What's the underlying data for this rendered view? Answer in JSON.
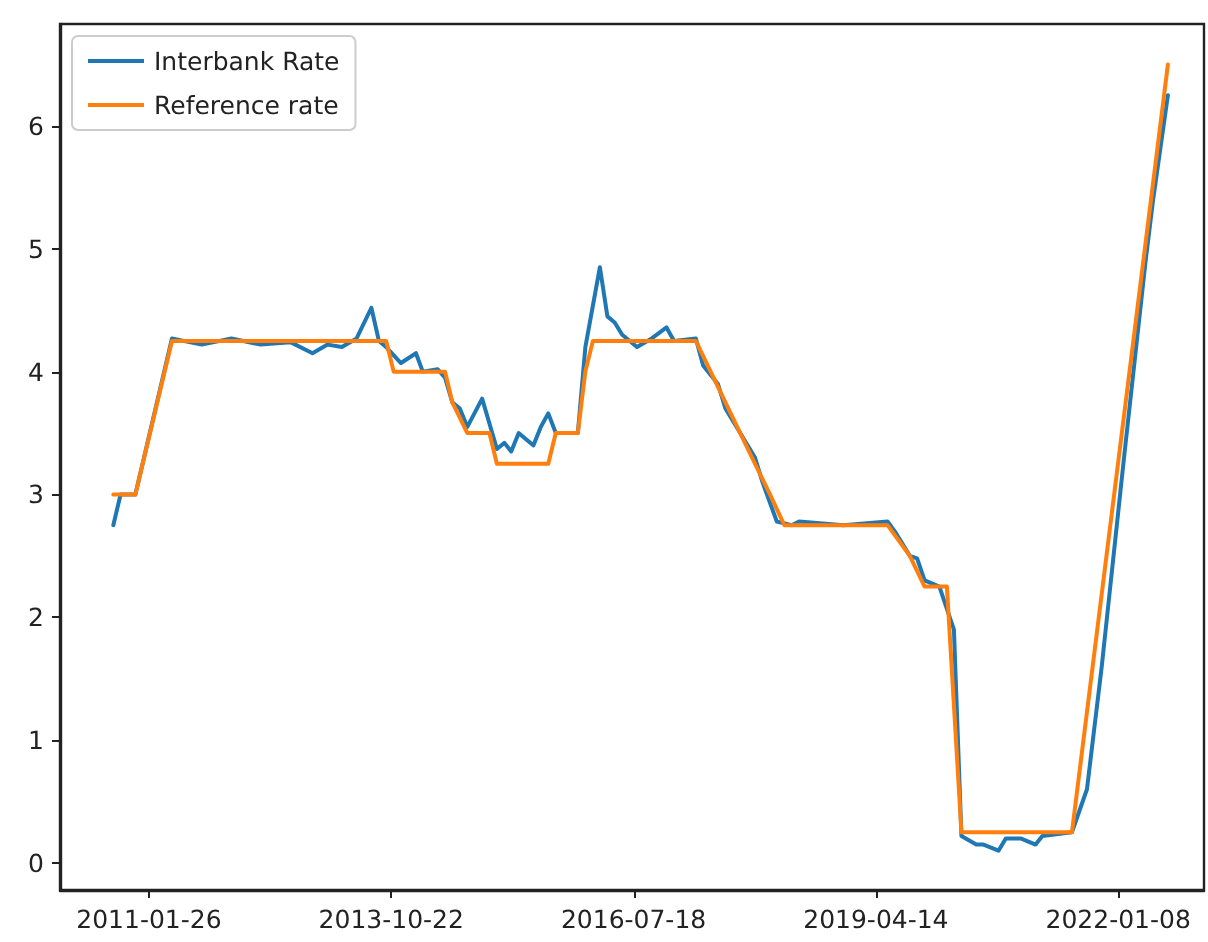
{
  "chart_data": {
    "type": "line",
    "xlim": [
      "2010-01-24",
      "2022-12-28"
    ],
    "xticks": [
      "2011-01-26",
      "2013-10-22",
      "2016-07-18",
      "2019-04-14",
      "2022-01-08"
    ],
    "ylim": [
      -0.22,
      6.83
    ],
    "yticks": [
      0,
      1,
      2,
      3,
      4,
      5,
      6
    ],
    "legend": "top left",
    "grid": false,
    "marker": "none",
    "line_style": "solid",
    "series": [
      {
        "name": "Interbank Rate",
        "color": "#1f77b4",
        "x": [
          "2010-09",
          "2010-10",
          "2010-12",
          "2011-05",
          "2011-09",
          "2012-01",
          "2012-05",
          "2012-09",
          "2012-12",
          "2013-02",
          "2013-04",
          "2013-06",
          "2013-08",
          "2013-09",
          "2013-10",
          "2013-12",
          "2014-02",
          "2014-03",
          "2014-05",
          "2014-06",
          "2014-07",
          "2014-08",
          "2014-09",
          "2014-11",
          "2015-01",
          "2015-02",
          "2015-03",
          "2015-04",
          "2015-05",
          "2015-06",
          "2015-07",
          "2015-08",
          "2015-09",
          "2015-12",
          "2016-01",
          "2016-03",
          "2016-04",
          "2016-05",
          "2016-06",
          "2016-08",
          "2016-10",
          "2016-12",
          "2017-01",
          "2017-04",
          "2017-05",
          "2017-07",
          "2017-08",
          "2017-10",
          "2017-12",
          "2018-01",
          "2018-03",
          "2018-05",
          "2018-06",
          "2018-12",
          "2019-06",
          "2019-07",
          "2019-09",
          "2019-10",
          "2019-11",
          "2020-01",
          "2020-03",
          "2020-04",
          "2020-06",
          "2020-07",
          "2020-09",
          "2020-10",
          "2020-12",
          "2021-02",
          "2021-03",
          "2021-07",
          "2021-09",
          "2021-11",
          "2022-02",
          "2022-05",
          "2022-06",
          "2022-08"
        ],
        "values": [
          2.75,
          3.0,
          3.0,
          4.27,
          4.22,
          4.27,
          4.22,
          4.24,
          4.15,
          4.22,
          4.2,
          4.27,
          4.52,
          4.25,
          4.2,
          4.07,
          4.15,
          4.0,
          4.02,
          3.95,
          3.75,
          3.7,
          3.55,
          3.78,
          3.37,
          3.42,
          3.35,
          3.5,
          3.45,
          3.4,
          3.55,
          3.66,
          3.5,
          3.5,
          4.2,
          4.85,
          4.45,
          4.4,
          4.3,
          4.2,
          4.27,
          4.36,
          4.25,
          4.27,
          4.05,
          3.9,
          3.7,
          3.5,
          3.3,
          3.1,
          2.78,
          2.75,
          2.78,
          2.75,
          2.78,
          2.7,
          2.5,
          2.48,
          2.3,
          2.25,
          1.9,
          0.22,
          0.15,
          0.15,
          0.1,
          0.2,
          0.2,
          0.15,
          0.22,
          0.25,
          0.6,
          1.6,
          3.3,
          4.9,
          5.4,
          6.25
        ]
      },
      {
        "name": "Reference rate",
        "color": "#ff7f0e",
        "x": [
          "2010-09",
          "2010-12",
          "2011-05",
          "2013-10",
          "2013-11",
          "2014-06",
          "2014-07",
          "2014-09",
          "2014-12",
          "2015-01",
          "2015-08",
          "2015-09",
          "2015-12",
          "2016-01",
          "2016-02",
          "2017-04",
          "2017-06",
          "2017-08",
          "2017-10",
          "2017-12",
          "2018-02",
          "2018-04",
          "2019-06",
          "2019-09",
          "2019-11",
          "2020-02",
          "2020-04",
          "2021-07",
          "2022-08"
        ],
        "values": [
          3.0,
          3.0,
          4.25,
          4.25,
          4.0,
          4.0,
          3.75,
          3.5,
          3.5,
          3.25,
          3.25,
          3.5,
          3.5,
          4.0,
          4.25,
          4.25,
          4.0,
          3.75,
          3.5,
          3.25,
          3.0,
          2.75,
          2.75,
          2.5,
          2.25,
          2.25,
          0.25,
          0.25,
          6.5
        ]
      }
    ]
  }
}
